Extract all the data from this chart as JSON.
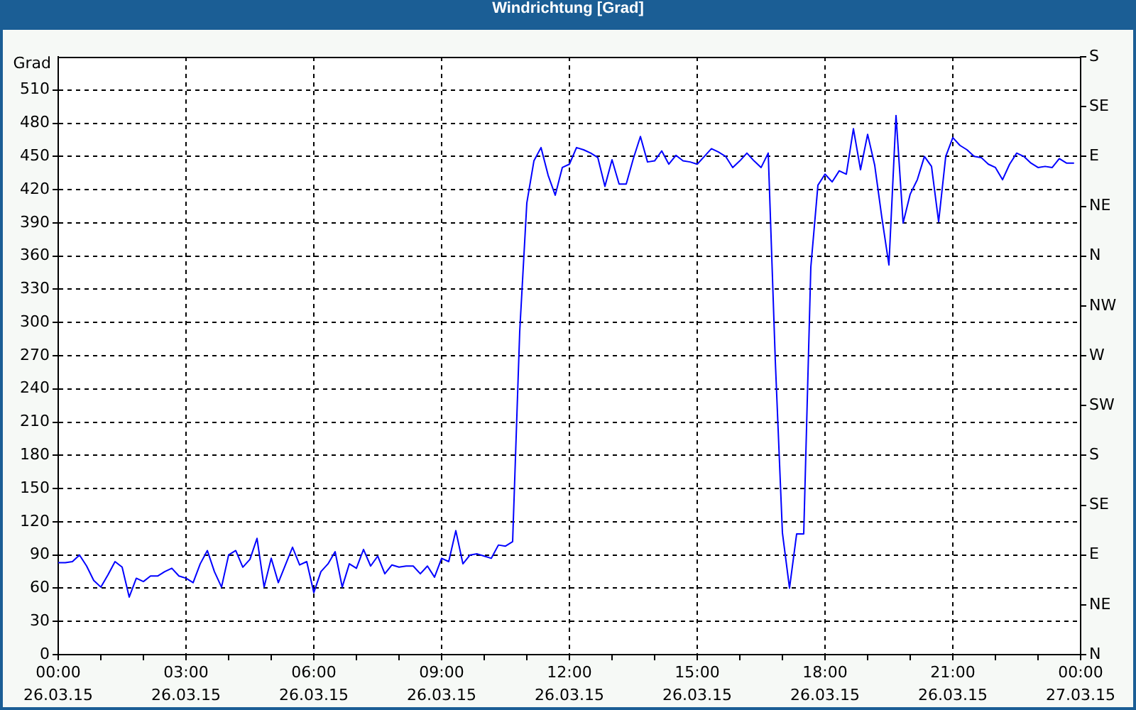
{
  "chart_data": {
    "type": "line",
    "title": "Windrichtung [Grad]",
    "ylabel": "Grad",
    "x": [
      "--03-26T00:00",
      "--03-26T00:10",
      "--03-26T00:20",
      "--03-26T00:30",
      "--03-26T00:40",
      "--03-26T00:50",
      "--03-26T01:00",
      "--03-26T01:10",
      "--03-26T01:20",
      "--03-26T01:30",
      "--03-26T01:40",
      "--03-26T01:50",
      "--03-26T02:00",
      "--03-26T02:10",
      "--03-26T02:20",
      "--03-26T02:30",
      "--03-26T02:40",
      "--03-26T02:50",
      "--03-26T03:00",
      "--03-26T03:10",
      "--03-26T03:20",
      "--03-26T03:30",
      "--03-26T03:40",
      "--03-26T03:50",
      "--03-26T04:00",
      "--03-26T04:10",
      "--03-26T04:20",
      "--03-26T04:30",
      "--03-26T04:40",
      "--03-26T04:50",
      "--03-26T05:00",
      "--03-26T05:10",
      "--03-26T05:20",
      "--03-26T05:30",
      "--03-26T05:40",
      "--03-26T05:50",
      "--03-26T06:00",
      "--03-26T06:10",
      "--03-26T06:20",
      "--03-26T06:30",
      "--03-26T06:40",
      "--03-26T06:50",
      "--03-26T07:00",
      "--03-26T07:10",
      "--03-26T07:20",
      "--03-26T07:30",
      "--03-26T07:40",
      "--03-26T07:50",
      "--03-26T08:00",
      "--03-26T08:10",
      "--03-26T08:20",
      "--03-26T08:30",
      "--03-26T08:40",
      "--03-26T08:50",
      "--03-26T09:00",
      "--03-26T09:10",
      "--03-26T09:20",
      "--03-26T09:30",
      "--03-26T09:40",
      "--03-26T09:50",
      "--03-26T10:00",
      "--03-26T10:10",
      "--03-26T10:20",
      "--03-26T10:30",
      "--03-26T10:40",
      "--03-26T10:50",
      "--03-26T11:00",
      "--03-26T11:10",
      "--03-26T11:20",
      "--03-26T11:30",
      "--03-26T11:40",
      "--03-26T11:50",
      "--03-26T12:00",
      "--03-26T12:10",
      "--03-26T12:20",
      "--03-26T12:30",
      "--03-26T12:40",
      "--03-26T12:50",
      "--03-26T13:00",
      "--03-26T13:10",
      "--03-26T13:20",
      "--03-26T13:30",
      "--03-26T13:40",
      "--03-26T13:50",
      "--03-26T14:00",
      "--03-26T14:10",
      "--03-26T14:20",
      "--03-26T14:30",
      "--03-26T14:40",
      "--03-26T14:50",
      "--03-26T15:00",
      "--03-26T15:10",
      "--03-26T15:20",
      "--03-26T15:30",
      "--03-26T15:40",
      "--03-26T15:50",
      "--03-26T16:00",
      "--03-26T16:10",
      "--03-26T16:20",
      "--03-26T16:30",
      "--03-26T16:40",
      "--03-26T16:50",
      "--03-26T17:00",
      "--03-26T17:10",
      "--03-26T17:20",
      "--03-26T17:30",
      "--03-26T17:40",
      "--03-26T17:50",
      "--03-26T18:00",
      "--03-26T18:10",
      "--03-26T18:20",
      "--03-26T18:30",
      "--03-26T18:40",
      "--03-26T18:50",
      "--03-26T19:00",
      "--03-26T19:10",
      "--03-26T19:20",
      "--03-26T19:30",
      "--03-26T19:40",
      "--03-26T19:50",
      "--03-26T20:00",
      "--03-26T20:10",
      "--03-26T20:20",
      "--03-26T20:30",
      "--03-26T20:40",
      "--03-26T20:50",
      "--03-26T21:00",
      "--03-26T21:10",
      "--03-26T21:20",
      "--03-26T21:30",
      "--03-26T21:40",
      "--03-26T21:50",
      "--03-26T22:00",
      "--03-26T22:10",
      "--03-26T22:20",
      "--03-26T22:30",
      "--03-26T22:40",
      "--03-26T22:50",
      "--03-26T23:00",
      "--03-26T23:10",
      "--03-26T23:20",
      "--03-26T23:30",
      "--03-26T23:40",
      "--03-26T23:50"
    ],
    "values": [
      83,
      83,
      84,
      90,
      80,
      67,
      61,
      72,
      84,
      79,
      52,
      69,
      66,
      71,
      71,
      75,
      78,
      71,
      69,
      65,
      82,
      94,
      75,
      61,
      90,
      94,
      79,
      86,
      105,
      61,
      87,
      65,
      81,
      97,
      81,
      84,
      56,
      75,
      82,
      93,
      61,
      82,
      78,
      95,
      80,
      89,
      73,
      81,
      79,
      80,
      80,
      73,
      80,
      70,
      87,
      84,
      112,
      82,
      90,
      91,
      89,
      87,
      99,
      98,
      102,
      292,
      408,
      446,
      458,
      433,
      415,
      440,
      443,
      458,
      456,
      453,
      449,
      423,
      447,
      425,
      425,
      448,
      468,
      445,
      446,
      455,
      443,
      451,
      446,
      445,
      443,
      450,
      457,
      454,
      450,
      440,
      446,
      453,
      446,
      440,
      453,
      265,
      110,
      60,
      109,
      109,
      350,
      424,
      434,
      427,
      437,
      434,
      475,
      438,
      470,
      442,
      395,
      352,
      487,
      390,
      416,
      429,
      450,
      441,
      391,
      450,
      467,
      460,
      456,
      450,
      449,
      443,
      440,
      429,
      443,
      453,
      450,
      444,
      440,
      441,
      440,
      448,
      444,
      444
    ],
    "color": "#0000ff",
    "xlim": [
      "--03-26T00:00",
      "--03-27T00:00"
    ],
    "xticks": [
      {
        "value": "--03-26T00:00",
        "label": "00:00\n26.03.15"
      },
      {
        "value": "--03-26T01:00",
        "label": null
      },
      {
        "value": "--03-26T02:00",
        "label": null
      },
      {
        "value": "--03-26T03:00",
        "label": "03:00\n26.03.15"
      },
      {
        "value": "--03-26T04:00",
        "label": null
      },
      {
        "value": "--03-26T05:00",
        "label": null
      },
      {
        "value": "--03-26T06:00",
        "label": "06:00\n26.03.15"
      },
      {
        "value": "--03-26T07:00",
        "label": null
      },
      {
        "value": "--03-26T08:00",
        "label": null
      },
      {
        "value": "--03-26T09:00",
        "label": "09:00\n26.03.15"
      },
      {
        "value": "--03-26T10:00",
        "label": null
      },
      {
        "value": "--03-26T11:00",
        "label": null
      },
      {
        "value": "--03-26T12:00",
        "label": "12:00\n26.03.15"
      },
      {
        "value": "--03-26T13:00",
        "label": null
      },
      {
        "value": "--03-26T14:00",
        "label": null
      },
      {
        "value": "--03-26T15:00",
        "label": "15:00\n26.03.15"
      },
      {
        "value": "--03-26T16:00",
        "label": null
      },
      {
        "value": "--03-26T17:00",
        "label": null
      },
      {
        "value": "--03-26T18:00",
        "label": "18:00\n26.03.15"
      },
      {
        "value": "--03-26T19:00",
        "label": null
      },
      {
        "value": "--03-26T20:00",
        "label": null
      },
      {
        "value": "--03-26T21:00",
        "label": "21:00\n26.03.15"
      },
      {
        "value": "--03-26T22:00",
        "label": null
      },
      {
        "value": "--03-26T23:00",
        "label": null
      },
      {
        "value": "--03-27T00:00",
        "label": "00:00\n27.03.15"
      }
    ],
    "ylim": [
      0,
      540
    ],
    "yticks": [
      0,
      30,
      60,
      90,
      120,
      150,
      180,
      210,
      240,
      270,
      300,
      330,
      360,
      390,
      420,
      450,
      480,
      510
    ],
    "y2_categories": [
      "S",
      "SE",
      "E",
      "NE",
      "N",
      "NW",
      "W",
      "SW",
      "S",
      "SE",
      "E",
      "NE",
      "N"
    ],
    "grid": true,
    "marker": "none",
    "line_style": "solid"
  }
}
